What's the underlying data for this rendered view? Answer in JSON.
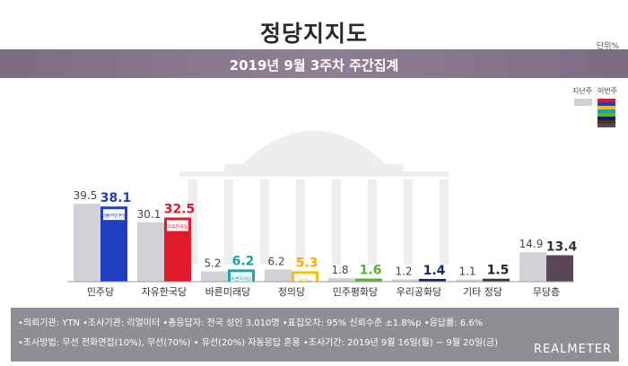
{
  "header": {
    "title": "정당지지도",
    "unit": "단위%",
    "subtitle": "2019년 9월 3주차 주간집계"
  },
  "legend": {
    "prev_label": "지난주",
    "curr_label": "이번주"
  },
  "chart_data": {
    "type": "bar",
    "categories": [
      "민주당",
      "자유한국당",
      "바른미래당",
      "정의당",
      "민주평화당",
      "우리공화당",
      "기타 정당",
      "무당층"
    ],
    "series": [
      {
        "name": "지난주",
        "values": [
          39.5,
          30.1,
          5.2,
          6.2,
          1.8,
          1.2,
          1.1,
          14.9
        ]
      },
      {
        "name": "이번주",
        "values": [
          38.1,
          32.5,
          6.2,
          5.3,
          1.6,
          1.4,
          1.5,
          13.4
        ]
      }
    ],
    "current_colors": [
      "#1f3fbf",
      "#e0192b",
      "#1aa6a6",
      "#f5bf16",
      "#5cb531",
      "#16215e",
      "#4a3328",
      "#5a4656"
    ],
    "current_label_colors": [
      "#1f3fbf",
      "#e0192b",
      "#1a9fa4",
      "#f0b400",
      "#58b22f",
      "#1c2462",
      "#222222",
      "#333333"
    ],
    "prev_color": "#d3d1d6",
    "party_logos": [
      "더불어민주당",
      "자유한국당",
      "바른미래당",
      "정의당",
      "",
      "",
      "",
      ""
    ],
    "ylim": [
      0,
      45
    ],
    "grid": false
  },
  "footer": {
    "line1": "•의뢰기관: YTN  •조사기관: 리얼미터 •총응답자: 전국 성인 3,010명  •표집오차: 95% 신뢰수준 ±1.8%p  •응답률: 6.6%",
    "line2": "•조사방법: 무선 전화면접(10%), 무선(70%) • 유선(20%) 자동응답 혼용  •조사기간: 2019년 9월 16일(월) ~ 9월 20일(금)",
    "brand": "REALMETER"
  }
}
